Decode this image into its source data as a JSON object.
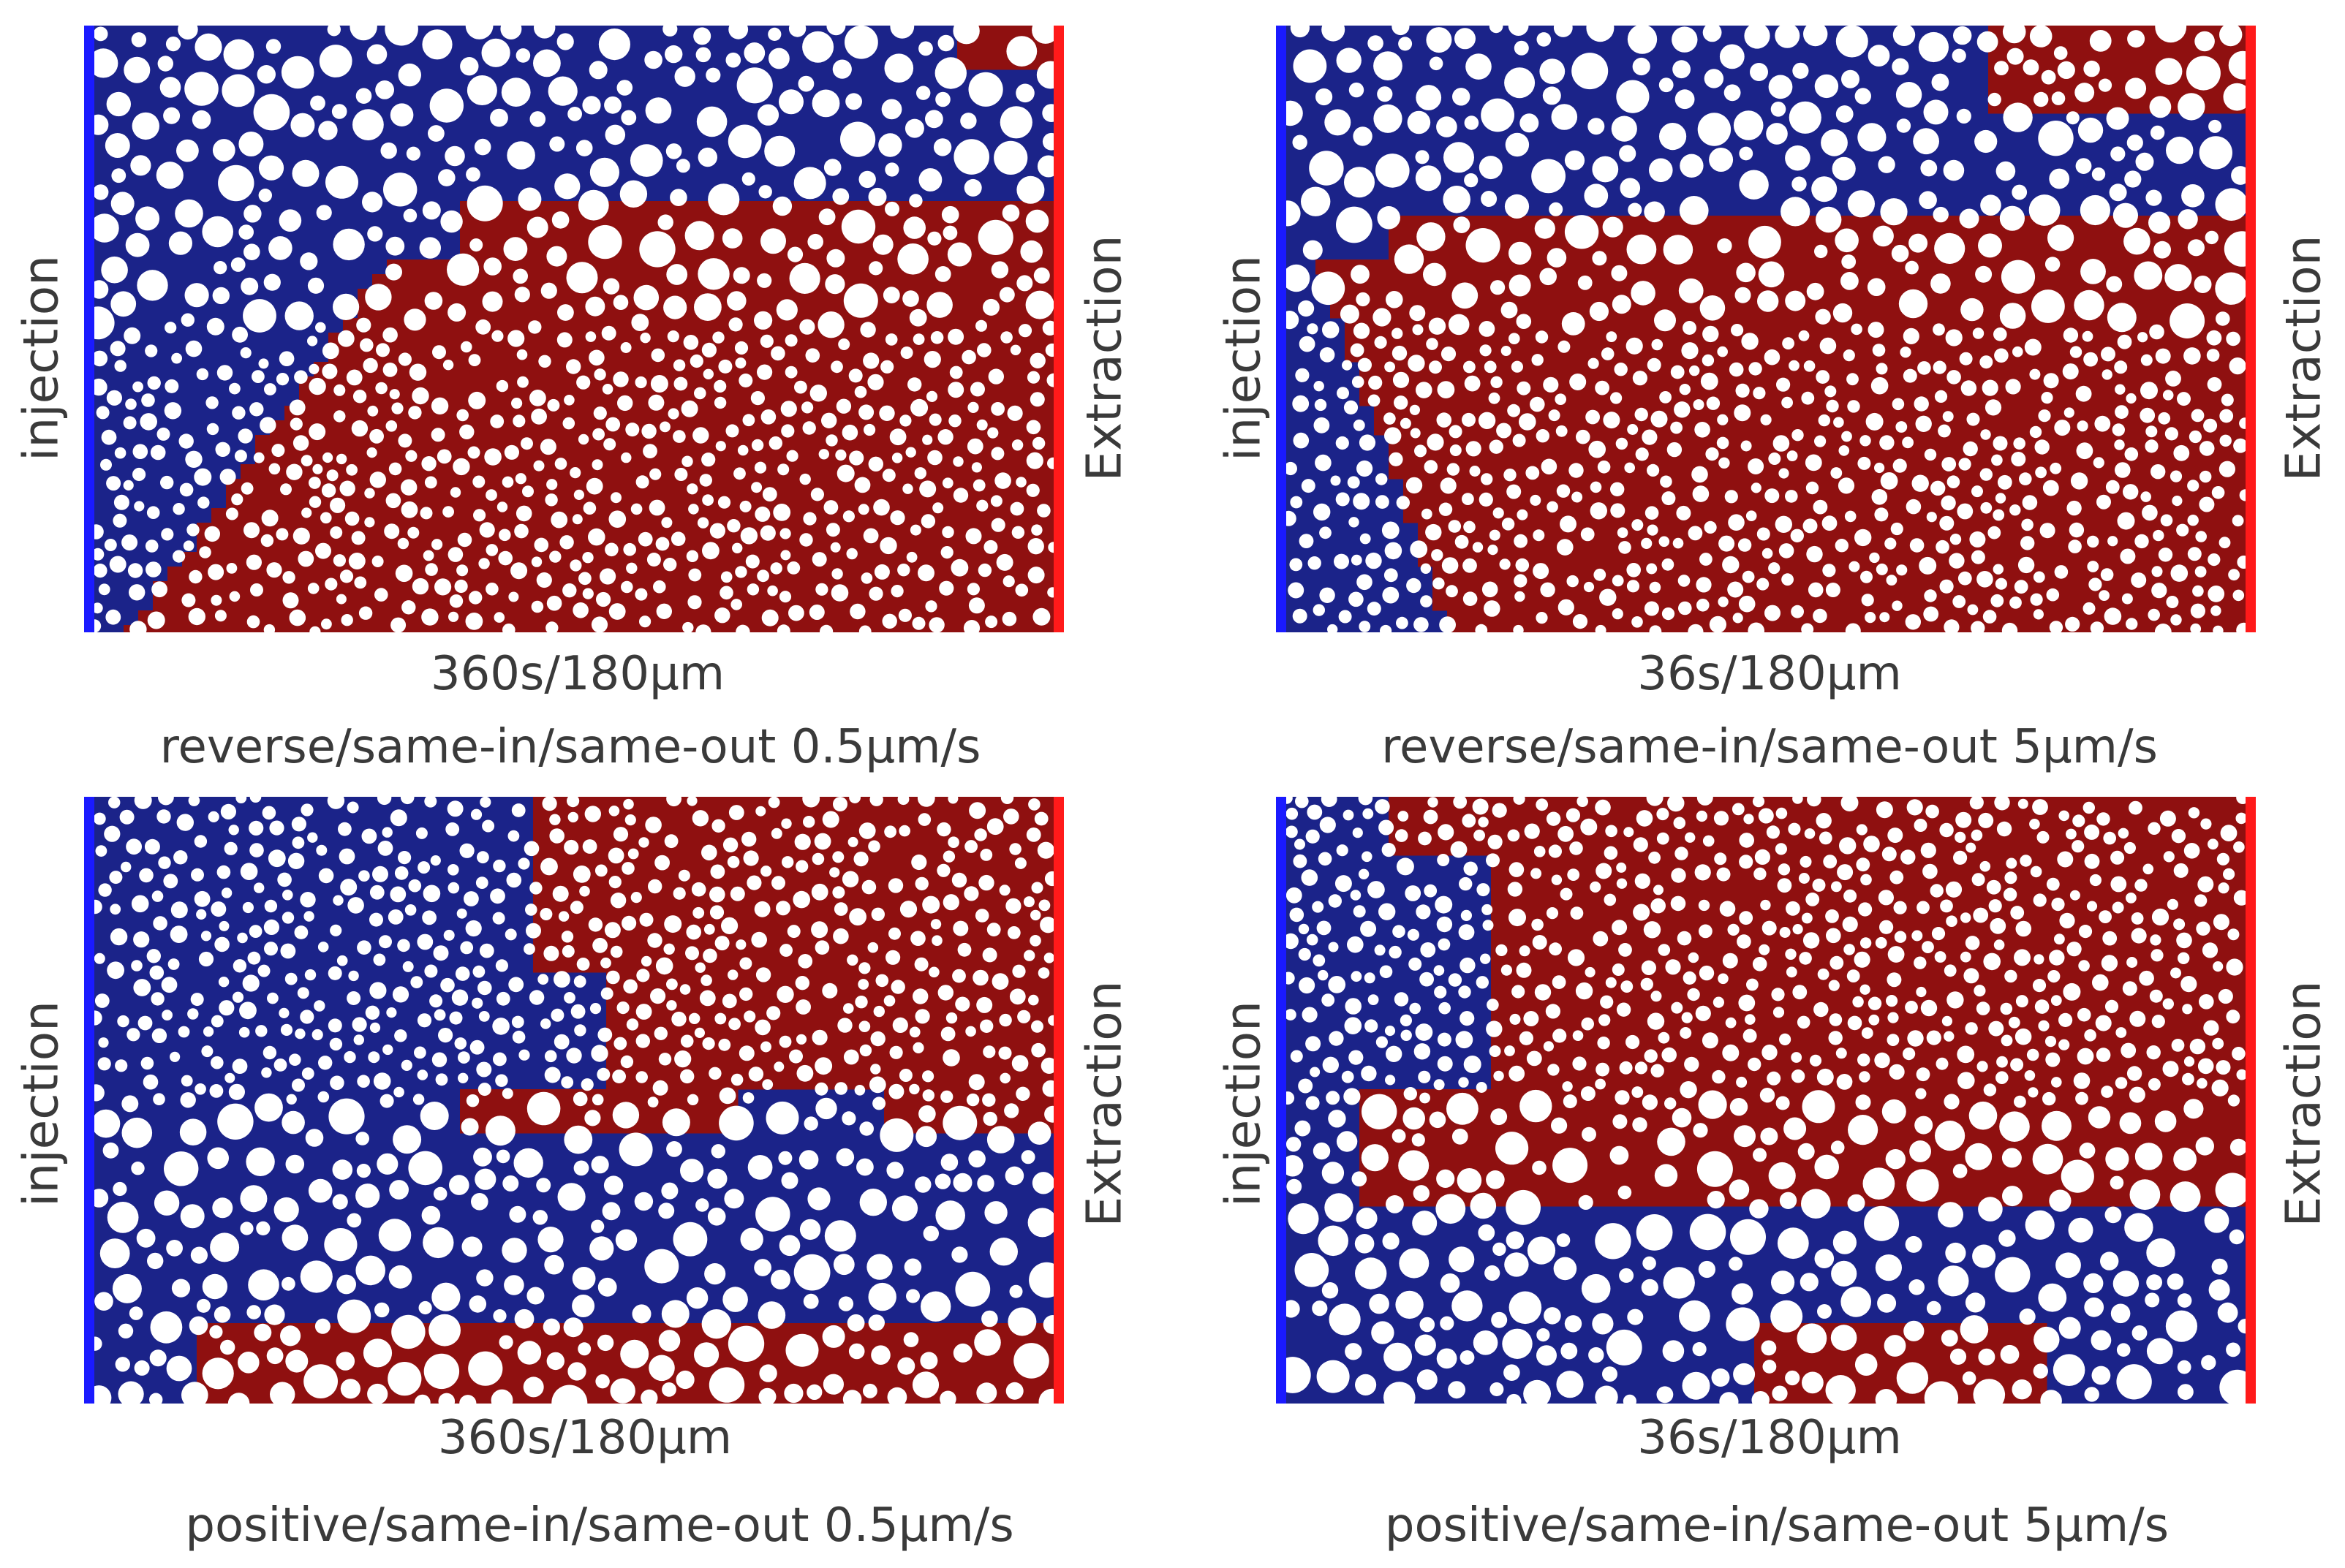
{
  "colors": {
    "water_blue": "#1b2389",
    "oil_red": "#8f1010",
    "grain": "#ffffff",
    "injection_bar": "#1a1aff",
    "extraction_bar": "#ff1a1a"
  },
  "panels": [
    {
      "id": "top-left",
      "left_label": "injection",
      "right_label": "Extraction",
      "time_caption": "360s/180μm",
      "condition_caption": "reverse/same-in/same-out 0.5μm/s",
      "layout": "fine-bottom"
    },
    {
      "id": "top-right",
      "left_label": "injection",
      "right_label": "Extraction",
      "time_caption": "36s/180μm",
      "condition_caption": "reverse/same-in/same-out 5μm/s",
      "layout": "fine-bottom"
    },
    {
      "id": "bottom-left",
      "left_label": "injection",
      "right_label": "Extraction",
      "time_caption": "360s/180μm",
      "condition_caption": "positive/same-in/same-out 0.5μm/s",
      "layout": "fine-top"
    },
    {
      "id": "bottom-right",
      "left_label": "injection",
      "right_label": "Extraction",
      "time_caption": "36s/180μm",
      "condition_caption": "positive/same-in/same-out 5μm/s",
      "layout": "fine-top"
    }
  ]
}
